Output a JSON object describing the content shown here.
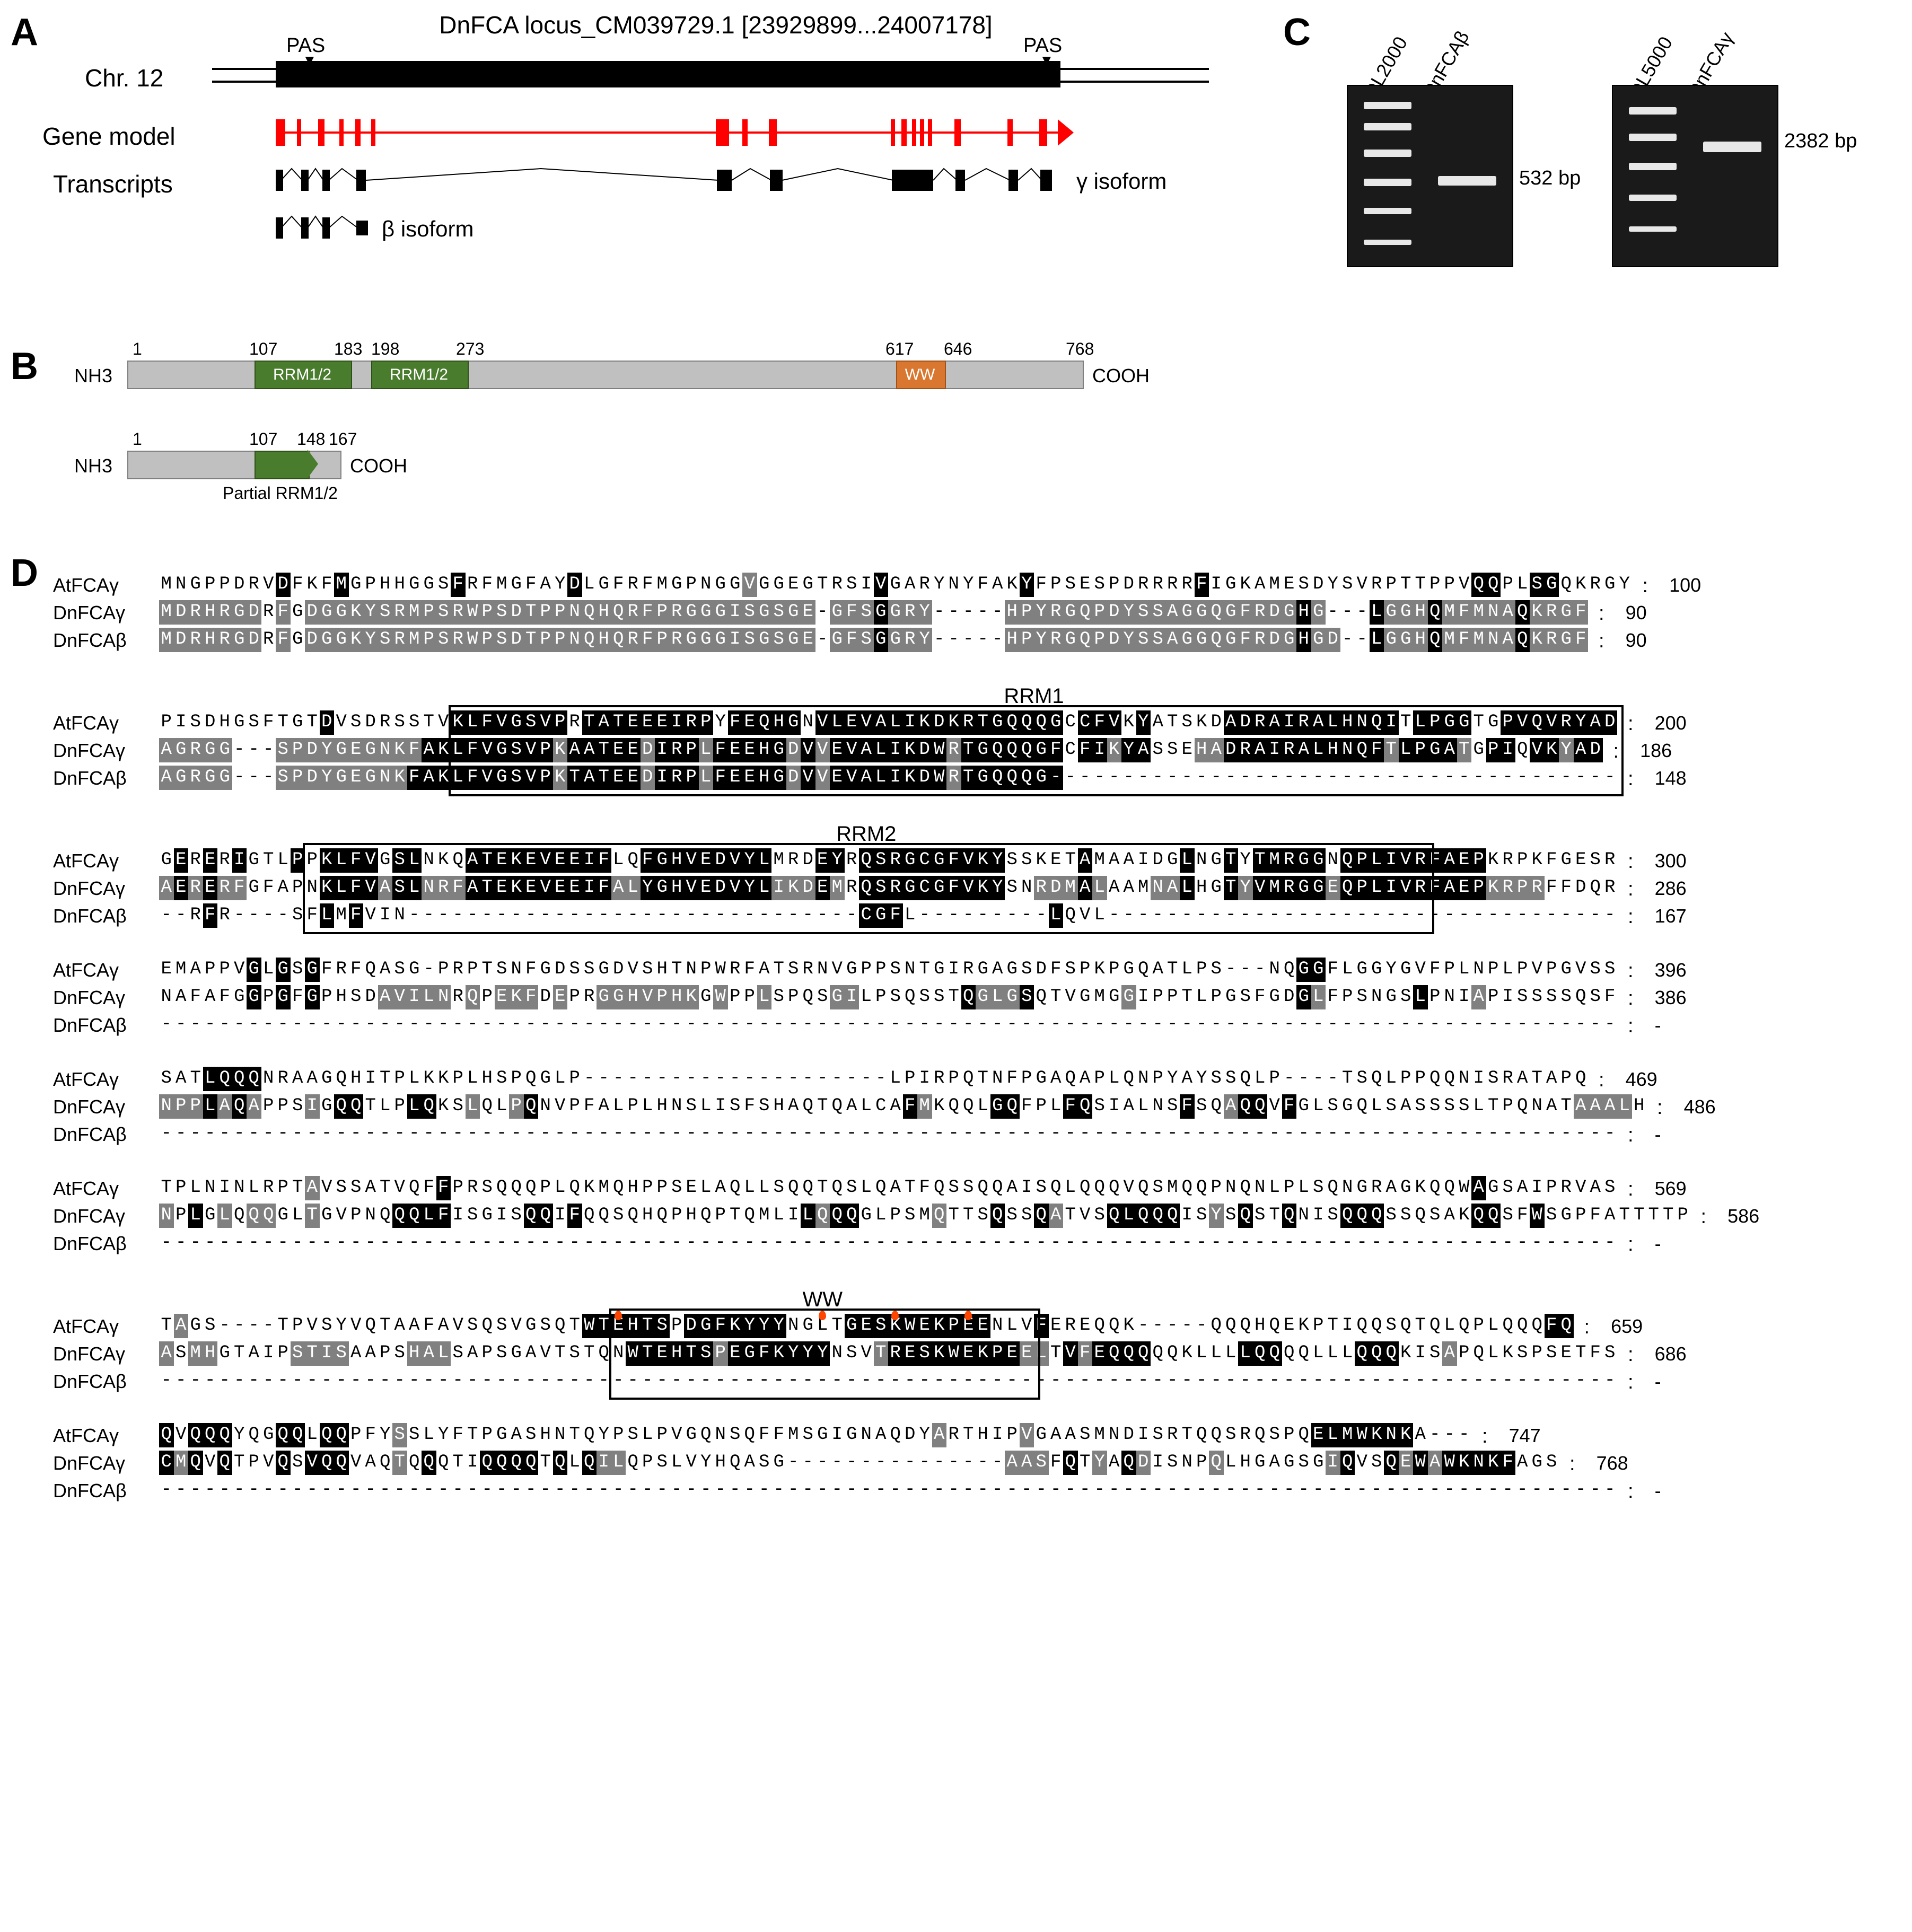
{
  "panelLabels": {
    "A": "A",
    "B": "B",
    "C": "C",
    "D": "D"
  },
  "panelA": {
    "locusTitle": "DnFCA locus_CM039729.1 [23929899...24007178]",
    "chrLabel": "Chr. 12",
    "geneModelLabel": "Gene model",
    "transcriptsLabel": "Transcripts",
    "pas": "PAS",
    "gammaIsoform": "γ isoform",
    "betaIsoform": "β isoform"
  },
  "panelB": {
    "nh3": "NH3",
    "cooh": "COOH",
    "rrm": "RRM1/2",
    "ww": "WW",
    "partialRrm": "Partial RRM1/2",
    "pos1": "1",
    "pos107": "107",
    "pos183": "183",
    "pos198": "198",
    "pos273": "273",
    "pos617": "617",
    "pos646": "646",
    "pos768": "768",
    "pos148": "148",
    "pos167": "167"
  },
  "panelC": {
    "ladders": [
      "DL2000",
      "DL5000"
    ],
    "lanes": [
      "DnFCAβ",
      "DnFCAγ"
    ],
    "sizes": [
      "532 bp",
      "2382 bp"
    ]
  },
  "panelD": {
    "blocks": [
      {
        "label": "",
        "rows": [
          {
            "name": "AtFCAγ",
            "seq": "MNGPPDRVDFKFMGPHHGGSFRFMGFAYDLGFRFMGPNGGVGGEGTRSIVGARYNYFAKYFPSESPDRRRRFIGKAMESDYSVRPTTPPVQQPLSGQKRGY",
            "pos": "100",
            "shade": "wwwwwwwwbwwwbwwwwwwwbwwwwwwwbwwwwwwwwwwwgwwwwwwwwbwwwwwwwwwbwwwwwwwwwwwbwwwwwwwwwwwwwwwwwwbbwwbbwwwww"
          },
          {
            "name": "DnFCAγ",
            "seq": "MDRHRGDRFGDGGKYSRMPSRWPSDTPPNQHQRFPRGGGISGSGE-GFSGGRY-----HPYRGQPDYSSAGGQGFRDGHG---LGGHQMFMNAQKRGF",
            "pos": "90",
            "shade": "gggggggwgwggggggggggggggggggggggggggggggggggg-gggbggg-----ggggggggggggggggggggbg---bgggbgggggbgggg"
          },
          {
            "name": "DnFCAβ",
            "seq": "MDRHRGDRFGDGGKYSRMPSRWPSDTPPNQHQRFPRGGGISGSGE-GFSGGRY-----HPYRGQPDYSSAGGQGFRDGHGD--LGGHQMFMNAQKRGF",
            "pos": "90",
            "shade": "gggggggwgwggggggggggggggggggggggggggggggggggg-gggbggg-----ggggggggggggggggggggbgg--bgggbgggggbgggg"
          }
        ]
      },
      {
        "label": "RRM1",
        "boxStart": 20,
        "boxEnd": 100,
        "rows": [
          {
            "name": "AtFCAγ",
            "seq": "PISDHGSFTGTDVSDRSSTVKLFVGSVPRTATEEEIRPYFEQHGNVLEVALIKDKRTGQQQGCCFVKYATSKDADRAIRALHNQITLPGGTGPVQVRYAD",
            "pos": "200",
            "shade": "wwwwwwwwwwwbwwwwwwwwbbbbbbbbwbbbbbbbbbwbbbbbwbbbbbbbbbbbbbbbbbwbbbwbwwwwwbbbbbbbbbbbbwbbbbwwbbbbbbbb"
          },
          {
            "name": "DnFCAγ",
            "seq": "AGRGG---SPDYGEGNKFAKLFVGSVPKAATEEDIRPLFEEHGDVVEVALIKDWRTGQQQGFCFIKYASSEHADRAIRALHNQFTLPGATGPIQVKYAD",
            "pos": "186",
            "shade": "ggggg---ggggggggggbbbbbbbbbgbbbbbgbbbgbbbbbgbgbbbbbbbbgbbbbbbbwbbgbbwwwggbbbbbbbbbbbgbbbbgwbbwbbgbbb"
          },
          {
            "name": "DnFCAβ",
            "seq": "AGRGG---SPDYGEGNKFAKLFVGSVPKTATEEDIRPLFEEHGDVVEVALIKDWRTGQQQG---------------------------------------",
            "pos": "148",
            "shade": "ggggg---gggggggggbbbbbbbbbbgbbbbbgbbbgbbbbbgbgbbbbbbbbgbbbbbbb---------------------------------------"
          }
        ]
      },
      {
        "label": "RRM2",
        "boxStart": 10,
        "boxEnd": 87,
        "rows": [
          {
            "name": "AtFCAγ",
            "seq": "GERERIGTLPPKLFVGSLNKQATEKEVEEIFLQFGHVEDVYLMRDEYRQSRGCGFVKYSSKETAMAAIDGLNGTYTMRGGNQPLIVRFAEPKRPKFGESR",
            "pos": "300",
            "shade": "wbwbwbwwwbwbbbbwbbwwwbbbbbbbbbbwwbbbbbbbbbwwwbbwbbbbbbbbbbwwwwwbwwwwwwbwwbwbbbbbwbbbbbbbbbbwwwwwwwww"
          },
          {
            "name": "DnFCAγ",
            "seq": "AERERFGFAPNKLFVASLNRFATEKEVEEIFALYGHVEDVYLIKDEMRQSRGCGFVKYSNRDMALAAMNALHGTYVMRGGEQPLIVRFAEPKRPRFFDQR",
            "pos": "286",
            "shade": "gbgbggwwwwwbbbbgbbgggbbbbbbbbbbggbbbbbbbbbgggbgwbbbbbbbbbbwwgggbgwwwggbwwbgbbbbbgbbbbbbbbbbggggwwwww"
          },
          {
            "name": "DnFCAβ",
            "seq": "--RFR----SFLMFVIN-------------------------------CGFL---------LQVL-----------------------------------",
            "pos": "167",
            "shade": "--wbw----wwbwbwww-------------------------------bbbw---------bwww-----------------------------------"
          }
        ]
      },
      {
        "label": "",
        "rows": [
          {
            "name": "AtFCAγ",
            "seq": "EMAPPVGLGSGFRFQASG-PRPTSNFGDSSGDVSHTNPWRFATSRNVGPPSNTGIRGAGSDFSPKPGQATLPS---NQGGFLGGYGVFPLNPLPVPGVSS",
            "pos": "396",
            "shade": "wwwwwwbwbwbwwwwwww-wwwwwwwwwwwwwwwwwwwwwwwwwwwwwwwwwwwwwwwwwwwwwwwwwwwwww---wwbbwwwwwwwwwwwwwwwwwwww"
          },
          {
            "name": "DnFCAγ",
            "seq": "NAFAFGGPGFGPHSDAVILNRQPEKFDEPRGGHVPHKGWPPLSPQSGILPSQSSTQGLGSQTVGMGGIPPTLPGSFGDGLFPSNGSLPNIAPISSSSQSF",
            "pos": "386",
            "shade": "wwwwwwbwbwbwwwwgggggwgwgggwgwwgggggggwgwwgwwwwggwwwwwwwbgggbwwwwwwgwwwwwwwwwwwbgwwwwwwbwwwgwwwwwwwww"
          },
          {
            "name": "DnFCAβ",
            "seq": "----------------------------------------------------------------------------------------------------",
            "pos": "-",
            "shade": "----------------------------------------------------------------------------------------------------"
          }
        ]
      },
      {
        "label": "",
        "rows": [
          {
            "name": "AtFCAγ",
            "seq": "SATLQQQNRAAGQHITPLKKPLHSPQGLP---------------------LPIRPQTNFPGAQAPLQNPYAYSSQLP----TSQLPPQQNISRATAPQ",
            "pos": "469",
            "shade": "wwwbbbbwwwwwwwwwwwwwwwwwwwwww---------------------wwwwwwwwwwwwwwwwwwwwwwwwwww----wwwwwwwwwwwwwwwww"
          },
          {
            "name": "DnFCAγ",
            "seq": "NPPLAQAPPSIGQQTLPLQKSLQLPQNVPFALPLHNSLISFSHAQTQALCAFMKQQLGQFPLFQSIALNSFSQAQQVFGLSGQLSASSSSLTPQNATAAALH",
            "pos": "486",
            "shade": "gggbgbgwwwgwbbwwwbbwwgwwgbwwwwwwwwwwwwwwwwwwwwwwwwwbgwwwwbbwwwbbwwwwwwbwwgbbwbwwwwwwwwwwwwwwwwwwwggggw"
          },
          {
            "name": "DnFCAβ",
            "seq": "----------------------------------------------------------------------------------------------------",
            "pos": "-",
            "shade": "----------------------------------------------------------------------------------------------------"
          }
        ]
      },
      {
        "label": "",
        "rows": [
          {
            "name": "AtFCAγ",
            "seq": "TPLNINLRPTAVSSATVQFFPRSQQQPLQKMQHPPSELAQLLSQQTQSLQATFQSSQQAISQLQQQVQSMQQPNQNLPLSQNGRAGKQQWAGSAIPRVAS",
            "pos": "569",
            "shade": "wwwwwwwwwwgwwwwwwwwbwwwwwwwwwwwwwwwwwwwwwwwwwwwwwwwwwwwwwwwwwwwwwwwwwwwwwwwwwwwwwwwwwwwwwwbwwwwwwwww"
          },
          {
            "name": "DnFCAγ",
            "seq": "NPLGLQQQGLTGVPNQQQLFISGISQQIFQQSQHQPHQPTQMLILQQQGLPSMQTTSQSSQATVSQLQQQISYSQSTQNISQQQSSQSAKQQSFWSGPFATTTTP",
            "pos": "586",
            "shade": "gwbwgwggwwgwwwwwbbbbwwwwwbbwbwwwwwwwwwwwwwwwbgbbwwwwwgwwwbwwbgwwwbbbbbwwgwbwwbwwwbbbwwwwwwbbwwbwwwwwwwwww"
          },
          {
            "name": "DnFCAβ",
            "seq": "----------------------------------------------------------------------------------------------------",
            "pos": "-",
            "shade": "----------------------------------------------------------------------------------------------------"
          }
        ]
      },
      {
        "label": "WW",
        "boxStart": 31,
        "boxEnd": 60,
        "wwDots": [
          31,
          45,
          50,
          55
        ],
        "rows": [
          {
            "name": "AtFCAγ",
            "seq": "TAGS----TPVSYVQTAAFAVSQSVGSQTWTEHTSPDGFKYYYNGLTGESKWEKPEENLVFEREQQK-----QQQHQEKPTIQQSQTQLQPLQQQFQ",
            "pos": "659",
            "shade": "wgww----wwwwwwwwwwwwwwwwwwwwwbbbbbbwbbbbbbbwwwwbbbbbbbbbbwwwbwwwwwww-----wwwwwwwwwwwwwwwwwwwwwwbb"
          },
          {
            "name": "DnFCAγ",
            "seq": "ASMHGTAIPSTISAAPSHALSAPSGAVTSTQNWTEHTSPEGFKYYYNSVTRESKWEKPEELTVFEQQQQQKLLLLQQQQLLLQQQKISAPQLKSPSETFS",
            "pos": "686",
            "shade": "gwggwwwwwggggwwwwgggwwwwwwwwwwwwbbbbbbgbbbbbbbwwwgbbbbbbbbbggwbgbbbbwwwwwwbbbwwwwwbbbwwwgwwwwwwwwwww"
          },
          {
            "name": "DnFCAβ",
            "seq": "----------------------------------------------------------------------------------------------------",
            "pos": "-",
            "shade": "----------------------------------------------------------------------------------------------------"
          }
        ]
      },
      {
        "label": "",
        "rows": [
          {
            "name": "AtFCAγ",
            "seq": "QVQQQYQGQQLQQPFYSSLYFTPGASHNTQYPSLPVGQNSQFFMSGIGNAQDYARTHIPVGAASMNDISRTQQSRQSPQELMWKNKA---",
            "pos": "747",
            "shade": "bwbbbwwwbbwbbwwwgwwwwwwwwwwwwwwwwwwwwwwwwwwwwwwwwwwwwgwwwwwgwwwwwwwwwwwwwwwwwwwbbbbbbbw---"
          },
          {
            "name": "DnFCAγ",
            "seq": "CMQVQTPVQSVQQVAQTQQQTIQQQQTQLQILQPSLVYHQASG---------------AASFQTYAQDISNPQLHGAGSGIQVSQEWAWKNKFAGS",
            "pos": "768",
            "shade": "bgbwbwwwbwbbbwwwgwbwwwbbbbwbwbggwwwwwwwwwww---------------gggwbwgwbgwwwwgwwwwwwwgbwwbgbgbbbbbwwww"
          },
          {
            "name": "DnFCAβ",
            "seq": "----------------------------------------------------------------------------------------------------",
            "pos": "-",
            "shade": "----------------------------------------------------------------------------------------------------"
          }
        ]
      }
    ]
  }
}
